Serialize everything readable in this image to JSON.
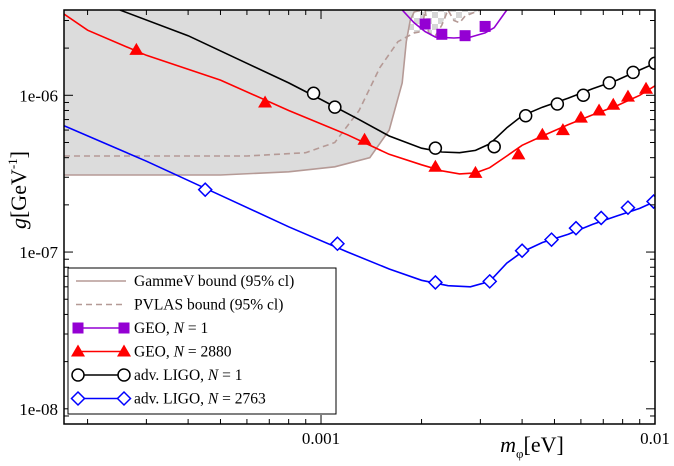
{
  "chart_data": {
    "type": "line",
    "xscale": "log",
    "yscale": "log",
    "xlim": [
      0.00017,
      0.01
    ],
    "ylim": [
      8e-09,
      3.5e-06
    ],
    "xlabel": "m_φ[eV]",
    "xlabel_main": "m",
    "xlabel_sub": "φ",
    "xlabel_unit": "[eV]",
    "ylabel": "g[GeV-1]",
    "ylabel_main": "g",
    "ylabel_unit": "[GeV",
    "ylabel_exp": "-1",
    "ylabel_close": "]",
    "x_ticks": [
      {
        "value": 0.001,
        "label": "0.001"
      },
      {
        "value": 0.01,
        "label": "0.01"
      }
    ],
    "y_ticks": [
      {
        "value": 1e-06,
        "label": "1e-06"
      },
      {
        "value": 1e-07,
        "label": "1e-07"
      },
      {
        "value": 1e-08,
        "label": "1e-08"
      }
    ],
    "grid": false,
    "legend_position": "bottom-left",
    "colors": {
      "gammev": "#b59a96",
      "pvlas": "#b59a96",
      "excluded_fill": "#dcdcdc",
      "geo1": "#9400d3",
      "geo2880": "#ff0000",
      "ligo1": "#000000",
      "ligo2763": "#0000ff"
    },
    "legend": [
      {
        "key": "gammev",
        "label": "GammeV bound (95% cl)",
        "line": "solid",
        "marker": "none"
      },
      {
        "key": "pvlas",
        "label": "PVLAS bound (95% cl)",
        "line": "dashed",
        "marker": "none"
      },
      {
        "key": "geo1",
        "label_main": "GEO, ",
        "label_var": "N",
        "label_rest": " = 1",
        "line": "solid",
        "marker": "square"
      },
      {
        "key": "geo2880",
        "label_main": "GEO, ",
        "label_var": "N",
        "label_rest": " = 2880",
        "line": "solid",
        "marker": "triangle"
      },
      {
        "key": "ligo1",
        "label_main": "adv. LIGO, ",
        "label_var": "N",
        "label_rest": " = 1",
        "line": "solid",
        "marker": "circle"
      },
      {
        "key": "ligo2763",
        "label_main": "adv. LIGO, ",
        "label_var": "N",
        "label_rest": " = 2763",
        "line": "solid",
        "marker": "diamond"
      }
    ],
    "series": [
      {
        "key": "gammev",
        "name": "GammeV bound (95% cl)",
        "line": "solid",
        "x": [
          0.00017,
          0.0005,
          0.0008,
          0.0011,
          0.0014,
          0.0016,
          0.00175,
          0.0018,
          0.00185,
          0.0019,
          0.002
        ],
        "y": [
          3.1e-07,
          3.1e-07,
          3.25e-07,
          3.5e-07,
          4e-07,
          6e-07,
          1.2e-06,
          2.2e-06,
          3e-06,
          3.4e-06,
          3.5e-06
        ]
      },
      {
        "key": "pvlas",
        "name": "PVLAS bound (95% cl)",
        "line": "dashed",
        "x": [
          0.00017,
          0.0006,
          0.0009,
          0.0011,
          0.0013,
          0.0015,
          0.0017,
          0.0019,
          0.002,
          0.00205,
          0.0021,
          0.0022,
          0.0023,
          0.0024,
          0.0025,
          0.0026,
          0.0027,
          0.003
        ],
        "y": [
          4.1e-07,
          4.1e-07,
          4.3e-07,
          5e-07,
          8e-07,
          1.5e-06,
          2.2e-06,
          2.5e-06,
          2.55e-06,
          3.5e-06,
          2.5e-06,
          2.4e-06,
          2.8e-06,
          3.5e-06,
          3e-06,
          2.9e-06,
          3.2e-06,
          3.5e-06
        ]
      },
      {
        "key": "geo1",
        "name": "GEO, N = 1",
        "line": "solid",
        "marker": "square",
        "x": [
          0.00175,
          0.0019,
          0.00205,
          0.0022,
          0.0025,
          0.0028,
          0.0031,
          0.0033,
          0.0036
        ],
        "y": [
          3.5e-06,
          2.9e-06,
          2.55e-06,
          2.35e-06,
          2.32e-06,
          2.35e-06,
          2.5e-06,
          2.7e-06,
          3.5e-06
        ],
        "marker_x": [
          0.00205,
          0.0023,
          0.0027,
          0.0031
        ],
        "marker_y": [
          2.85e-06,
          2.45e-06,
          2.4e-06,
          2.75e-06
        ]
      },
      {
        "key": "geo2880",
        "name": "GEO, N = 2880",
        "line": "solid",
        "marker": "triangle",
        "x": [
          0.00017,
          0.0002,
          0.0003,
          0.0005,
          0.0008,
          0.0012,
          0.0016,
          0.002,
          0.0023,
          0.0026,
          0.0029,
          0.0032,
          0.0036,
          0.004,
          0.0046,
          0.0055,
          0.0065,
          0.0077,
          0.009,
          0.01
        ],
        "y": [
          3.3e-06,
          2.6e-06,
          1.8e-06,
          1.25e-06,
          8e-07,
          5.6e-07,
          4.2e-07,
          3.6e-07,
          3.3e-07,
          3.15e-07,
          3.2e-07,
          3.45e-07,
          4.1e-07,
          4.8e-07,
          5.5e-07,
          6.5e-07,
          7.5e-07,
          8.6e-07,
          1e-06,
          1.15e-06
        ],
        "marker_x": [
          0.00028,
          0.00068,
          0.00135,
          0.0022,
          0.0029,
          0.0039,
          0.0046,
          0.0053,
          0.006,
          0.0068,
          0.0075,
          0.0083,
          0.0094
        ],
        "marker_y": [
          1.95e-06,
          9e-07,
          5.2e-07,
          3.5e-07,
          3.2e-07,
          4.2e-07,
          5.6e-07,
          6e-07,
          7.2e-07,
          8e-07,
          8.7e-07,
          9.8e-07,
          1.1e-06
        ]
      },
      {
        "key": "ligo1",
        "name": "adv. LIGO, N = 1",
        "line": "solid",
        "marker": "circle",
        "x": [
          0.00025,
          0.0004,
          0.0006,
          0.0008,
          0.001,
          0.0013,
          0.0016,
          0.002,
          0.0023,
          0.0026,
          0.0029,
          0.0032,
          0.0036,
          0.004,
          0.0046,
          0.0055,
          0.0065,
          0.0077,
          0.009,
          0.01
        ],
        "y": [
          3.5e-06,
          2.4e-06,
          1.6e-06,
          1.2e-06,
          9.4e-07,
          7e-07,
          5.5e-07,
          4.6e-07,
          4.35e-07,
          4.3e-07,
          4.45e-07,
          4.9e-07,
          6.2e-07,
          7.4e-07,
          8.4e-07,
          9.6e-07,
          1.1e-06,
          1.25e-06,
          1.45e-06,
          1.6e-06
        ],
        "marker_x": [
          0.00095,
          0.0011,
          0.0022,
          0.0033,
          0.0041,
          0.0051,
          0.0061,
          0.0073,
          0.0086,
          0.01
        ],
        "marker_y": [
          1.03e-06,
          8.4e-07,
          4.6e-07,
          4.7e-07,
          7.4e-07,
          8.8e-07,
          1e-06,
          1.2e-06,
          1.4e-06,
          1.6e-06
        ]
      },
      {
        "key": "ligo2763",
        "name": "adv. LIGO, N = 2763",
        "line": "solid",
        "marker": "diamond",
        "x": [
          0.00017,
          0.0003,
          0.0005,
          0.0008,
          0.0012,
          0.0016,
          0.002,
          0.0024,
          0.0028,
          0.0032,
          0.0036,
          0.004,
          0.0046,
          0.0055,
          0.0065,
          0.0077,
          0.009,
          0.01
        ],
        "y": [
          6.4e-07,
          3.8e-07,
          2.3e-07,
          1.45e-07,
          1e-07,
          7.8e-08,
          6.6e-08,
          6.1e-08,
          6e-08,
          6.5e-08,
          8.5e-08,
          1e-07,
          1.15e-07,
          1.3e-07,
          1.5e-07,
          1.7e-07,
          1.9e-07,
          2.1e-07
        ],
        "marker_x": [
          0.00045,
          0.00112,
          0.0022,
          0.0032,
          0.004,
          0.0049,
          0.0058,
          0.0069,
          0.0083,
          0.0099
        ],
        "marker_y": [
          2.5e-07,
          1.13e-07,
          6.4e-08,
          6.5e-08,
          1.02e-07,
          1.2e-07,
          1.42e-07,
          1.65e-07,
          1.92e-07,
          2.1e-07
        ]
      }
    ]
  }
}
